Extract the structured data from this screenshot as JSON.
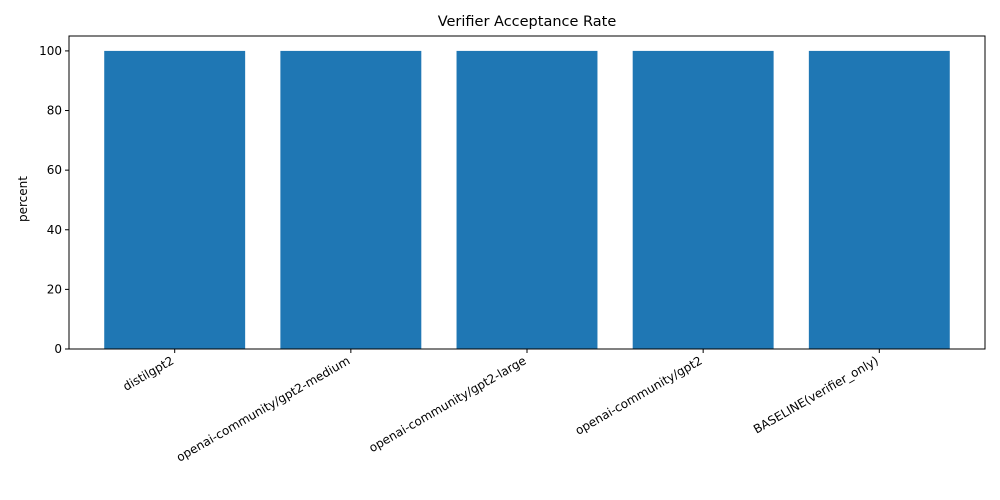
{
  "chart_data": {
    "type": "bar",
    "title": "Verifier Acceptance Rate",
    "xlabel": "",
    "ylabel": "percent",
    "categories": [
      "distilgpt2",
      "openai-community/gpt2-medium",
      "openai-community/gpt2-large",
      "openai-community/gpt2",
      "BASELINE(verifier_only)"
    ],
    "values": [
      100,
      100,
      100,
      100,
      100
    ],
    "ylim": [
      0,
      105
    ],
    "yticks": [
      0,
      20,
      40,
      60,
      80,
      100
    ],
    "bar_color": "#1f77b4",
    "grid": false,
    "legend": "none"
  }
}
